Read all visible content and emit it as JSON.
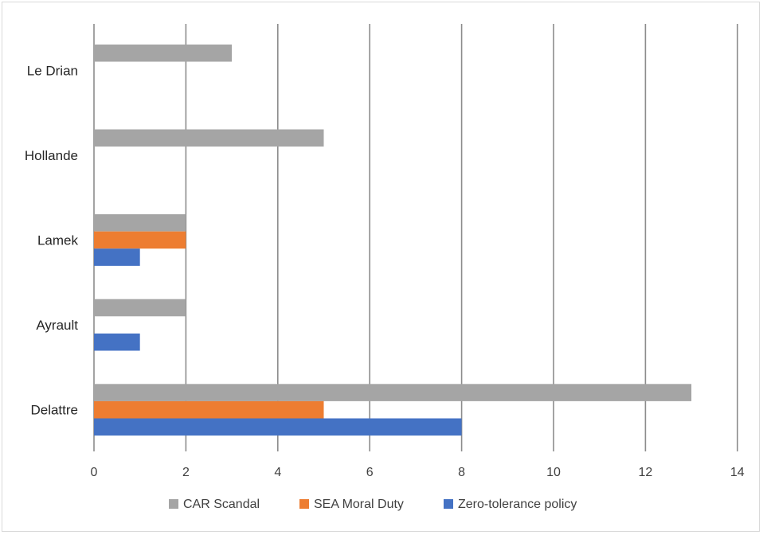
{
  "chart_data": {
    "type": "bar",
    "orientation": "horizontal",
    "categories": [
      "Le Drian",
      "Hollande",
      "Lamek",
      "Ayrault",
      "Delattre"
    ],
    "series": [
      {
        "name": "CAR Scandal",
        "color": "#a5a5a5",
        "values": [
          3,
          5,
          2,
          2,
          13
        ]
      },
      {
        "name": "SEA Moral Duty",
        "color": "#ed7d31",
        "values": [
          0,
          0,
          2,
          0,
          5
        ]
      },
      {
        "name": "Zero-tolerance policy",
        "color": "#4472c4",
        "values": [
          0,
          0,
          1,
          1,
          8
        ]
      }
    ],
    "x_ticks": [
      "0",
      "2",
      "4",
      "6",
      "8",
      "10",
      "12",
      "14"
    ],
    "xlim": [
      0,
      14
    ],
    "grid": "vertical",
    "legend_position": "bottom",
    "title": "",
    "xlabel": "",
    "ylabel": ""
  }
}
